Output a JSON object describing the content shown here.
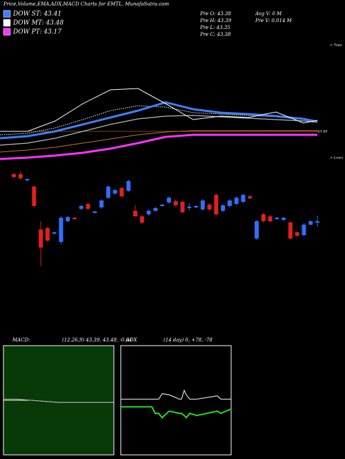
{
  "header": {
    "title": "Price,Volume,EMA,ADX,MACD Charts for EMTL. MunafaSutra.com"
  },
  "legend": [
    {
      "label": "DOW ST: 43.41",
      "color": "#3d7fff"
    },
    {
      "label": "DOW MT: 43.48",
      "color": "#ffffff"
    },
    {
      "label": "DOW PT: 43.17",
      "color": "#ff33ff"
    }
  ],
  "info": [
    "Pre  O: 43.38",
    "Pre  H: 43.39",
    "Pre  L: 43.35",
    "Pre  C: 43.38",
    "Avg V: 0  M",
    "Pre  V: 0.014  M"
  ],
  "chart_data": [
    {
      "type": "line",
      "labels": [
        "< Tops",
        "< Lows",
        "43.49"
      ],
      "x": [
        0,
        40,
        80,
        120,
        160,
        200,
        240,
        280,
        320,
        360,
        400,
        440,
        460
      ],
      "xlim": [
        0,
        460
      ],
      "ylim": [
        0,
        175
      ],
      "series": [
        {
          "name": "DOW PT: 43.17",
          "color": "#ff33ff",
          "width": 3,
          "style": "solid",
          "values": [
            5,
            7,
            10,
            14,
            20,
            28,
            37,
            40,
            40,
            40,
            40,
            40,
            40
          ]
        },
        {
          "name": "EMA 100",
          "color": "#c8742a",
          "width": 1,
          "style": "solid",
          "values": [
            15,
            18,
            22,
            28,
            34,
            40,
            44,
            46,
            46,
            46,
            46,
            46,
            46
          ]
        },
        {
          "name": "EMA 50",
          "color": "#bbbbbb",
          "width": 1.2,
          "style": "solid",
          "values": [
            25,
            28,
            35,
            45,
            55,
            63,
            67,
            68,
            66,
            64,
            62,
            60,
            58
          ]
        },
        {
          "name": "DOW MT: 43.48",
          "color": "#ffffff",
          "width": 1,
          "style": "dotted",
          "values": [
            40,
            42,
            50,
            62,
            75,
            82,
            80,
            72,
            70,
            68,
            66,
            62,
            60
          ]
        },
        {
          "name": "DOW ST: 43.41",
          "color": "#3d7fff",
          "width": 3,
          "style": "solid",
          "values": [
            35,
            38,
            45,
            55,
            65,
            75,
            87,
            77,
            72,
            70,
            67,
            63,
            59
          ]
        },
        {
          "name": "Price",
          "color": "#ffffff",
          "width": 1,
          "style": "solid",
          "values": [
            45,
            45,
            60,
            85,
            105,
            107,
            85,
            62,
            67,
            65,
            73,
            57,
            61
          ]
        }
      ]
    },
    {
      "type": "candlestick",
      "ylim": [
        0,
        150
      ],
      "up_color": "#2f6fff",
      "down_color": "#e02020",
      "open": [
        138,
        138,
        129,
        120,
        58,
        60,
        52,
        40,
        70,
        75,
        88,
        95,
        82,
        90,
        104,
        110,
        118,
        114,
        85,
        77,
        80,
        85,
        92,
        97,
        99,
        98,
        89,
        90,
        87,
        94,
        108,
        85,
        92,
        95,
        98,
        106,
        45,
        80,
        77,
        73,
        72,
        68,
        54,
        50,
        65,
        68
      ],
      "close": [
        134,
        132,
        131,
        92,
        32,
        42,
        54,
        75,
        76,
        73,
        92,
        88,
        84,
        100,
        120,
        115,
        106,
        128,
        77,
        68,
        85,
        89,
        94,
        104,
        93,
        83,
        91,
        92,
        100,
        87,
        80,
        93,
        100,
        104,
        108,
        103,
        70,
        70,
        70,
        75,
        75,
        45,
        49,
        65,
        70,
        70
      ],
      "high": [
        140,
        142,
        132,
        122,
        70,
        62,
        55,
        77,
        78,
        76,
        94,
        97,
        85,
        102,
        122,
        117,
        120,
        130,
        93,
        79,
        87,
        91,
        95,
        106,
        101,
        100,
        96,
        93,
        102,
        96,
        110,
        95,
        102,
        106,
        110,
        108,
        72,
        82,
        79,
        76,
        76,
        70,
        55,
        67,
        71,
        78
      ],
      "low": [
        132,
        130,
        128,
        90,
        5,
        40,
        51,
        37,
        68,
        72,
        86,
        86,
        81,
        88,
        102,
        108,
        104,
        112,
        77,
        66,
        78,
        84,
        91,
        95,
        91,
        81,
        86,
        89,
        85,
        85,
        78,
        83,
        90,
        93,
        96,
        102,
        43,
        68,
        68,
        72,
        70,
        43,
        47,
        48,
        64,
        62
      ]
    },
    {
      "type": "line",
      "labels": [
        "MACD:",
        "(12,26,9) 43.39, 43.48, -0.04"
      ],
      "x": [
        0,
        20,
        40,
        60,
        80,
        100,
        120,
        160
      ],
      "xlim": [
        0,
        160
      ],
      "ylim": [
        0,
        100
      ],
      "series": [
        {
          "name": "MACD",
          "color": "#ffffff",
          "width": 1,
          "style": "solid",
          "values": [
            50,
            50,
            50,
            49,
            48,
            48,
            48,
            48
          ]
        },
        {
          "name": "Signal",
          "color": "#aaaaaa",
          "width": 1,
          "style": "solid",
          "values": [
            51,
            51,
            50,
            49,
            48,
            48,
            48,
            48
          ]
        }
      ]
    },
    {
      "type": "line",
      "labels": [
        "ADX",
        "(14 day) 0, +78, -78"
      ],
      "x": [
        0,
        30,
        45,
        50,
        55,
        60,
        70,
        85,
        88,
        92,
        95,
        100,
        110,
        140,
        145,
        160
      ],
      "xlim": [
        0,
        160
      ],
      "ylim": [
        0,
        100
      ],
      "series": [
        {
          "name": "ADX",
          "color": "#dddddd",
          "width": 1.2,
          "style": "solid",
          "values": [
            51,
            51,
            51,
            51,
            51,
            56,
            55,
            51,
            51,
            59,
            55,
            51,
            51,
            54,
            51,
            51
          ]
        },
        {
          "name": "+DI",
          "color": "#22dd22",
          "width": 2,
          "style": "solid",
          "values": [
            44,
            44,
            44,
            38,
            38,
            34,
            40,
            38,
            38,
            36,
            34,
            38,
            36,
            40,
            38,
            42
          ]
        }
      ]
    }
  ]
}
